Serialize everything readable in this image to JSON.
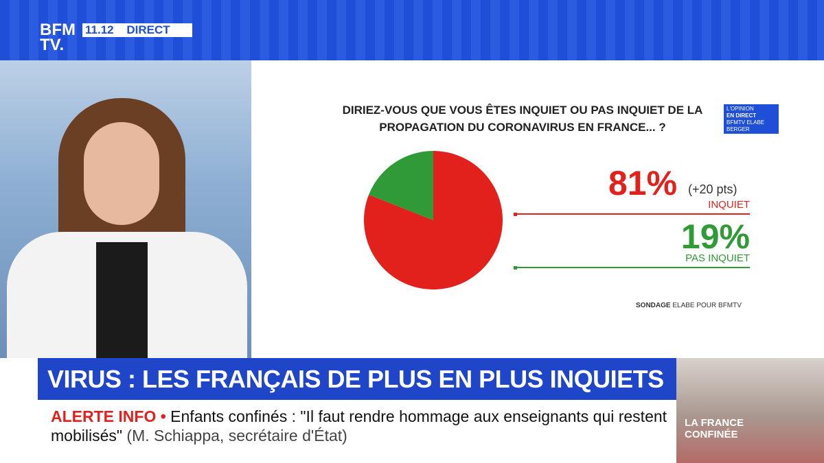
{
  "channel": {
    "logo_top": "BFM",
    "logo_bottom": "TV.",
    "time": "11.12",
    "live": "DIRECT"
  },
  "chart_data": {
    "type": "pie",
    "title": "DIRIEZ-VOUS QUE VOUS ÊTES INQUIET OU PAS INQUIET DE LA PROPAGATION DU CORONAVIRUS EN FRANCE... ?",
    "categories": [
      "INQUIET",
      "PAS INQUIET"
    ],
    "values": [
      81,
      19
    ],
    "value_labels": [
      "81%",
      "19%"
    ],
    "colors": [
      "#e2211c",
      "#2f9a36"
    ],
    "annotation": "(+20 pts)",
    "source_bold": "SONDAGE",
    "source": "ELABE POUR BFMTV"
  },
  "badge": {
    "line1": "L'OPINION",
    "line2": "EN DIRECT",
    "line3": "BFMTV ELABE",
    "line4": "BERGER LEVRAULT"
  },
  "headline": "VIRUS : LES FRANÇAIS DE PLUS EN PLUS INQUIETS",
  "ticker": {
    "label": "ALERTE INFO •",
    "text": "Enfants confinés : \"Il faut rendre hommage aux enseignants qui restent mobilisés\"",
    "attribution": "(M. Schiappa, secrétaire d'État)"
  },
  "inset": {
    "line1": "LA FRANCE",
    "line2": "CONFINÉE"
  }
}
